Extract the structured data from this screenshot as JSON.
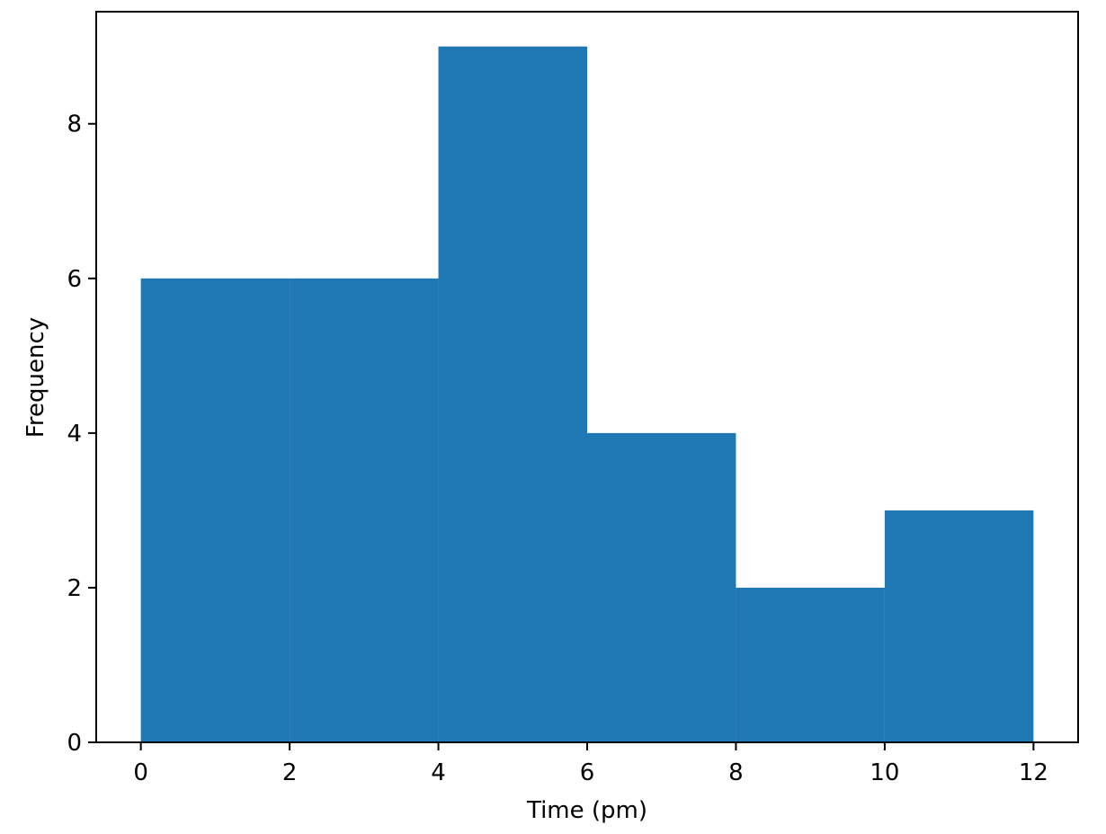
{
  "chart_data": {
    "type": "bar",
    "histogram": true,
    "bins": [
      {
        "start": 0,
        "end": 2,
        "value": 6
      },
      {
        "start": 2,
        "end": 4,
        "value": 6
      },
      {
        "start": 4,
        "end": 6,
        "value": 9
      },
      {
        "start": 6,
        "end": 8,
        "value": 4
      },
      {
        "start": 8,
        "end": 10,
        "value": 2
      },
      {
        "start": 10,
        "end": 12,
        "value": 3
      }
    ],
    "xlabel": "Time (pm)",
    "ylabel": "Frequency",
    "xlim": [
      -0.6,
      12.6
    ],
    "ylim": [
      0,
      9.45
    ],
    "xticks": [
      0,
      2,
      4,
      6,
      8,
      10,
      12
    ],
    "yticks": [
      0,
      2,
      4,
      6,
      8
    ],
    "grid": false,
    "legend": "none",
    "bar_color": "#1f77b4"
  }
}
